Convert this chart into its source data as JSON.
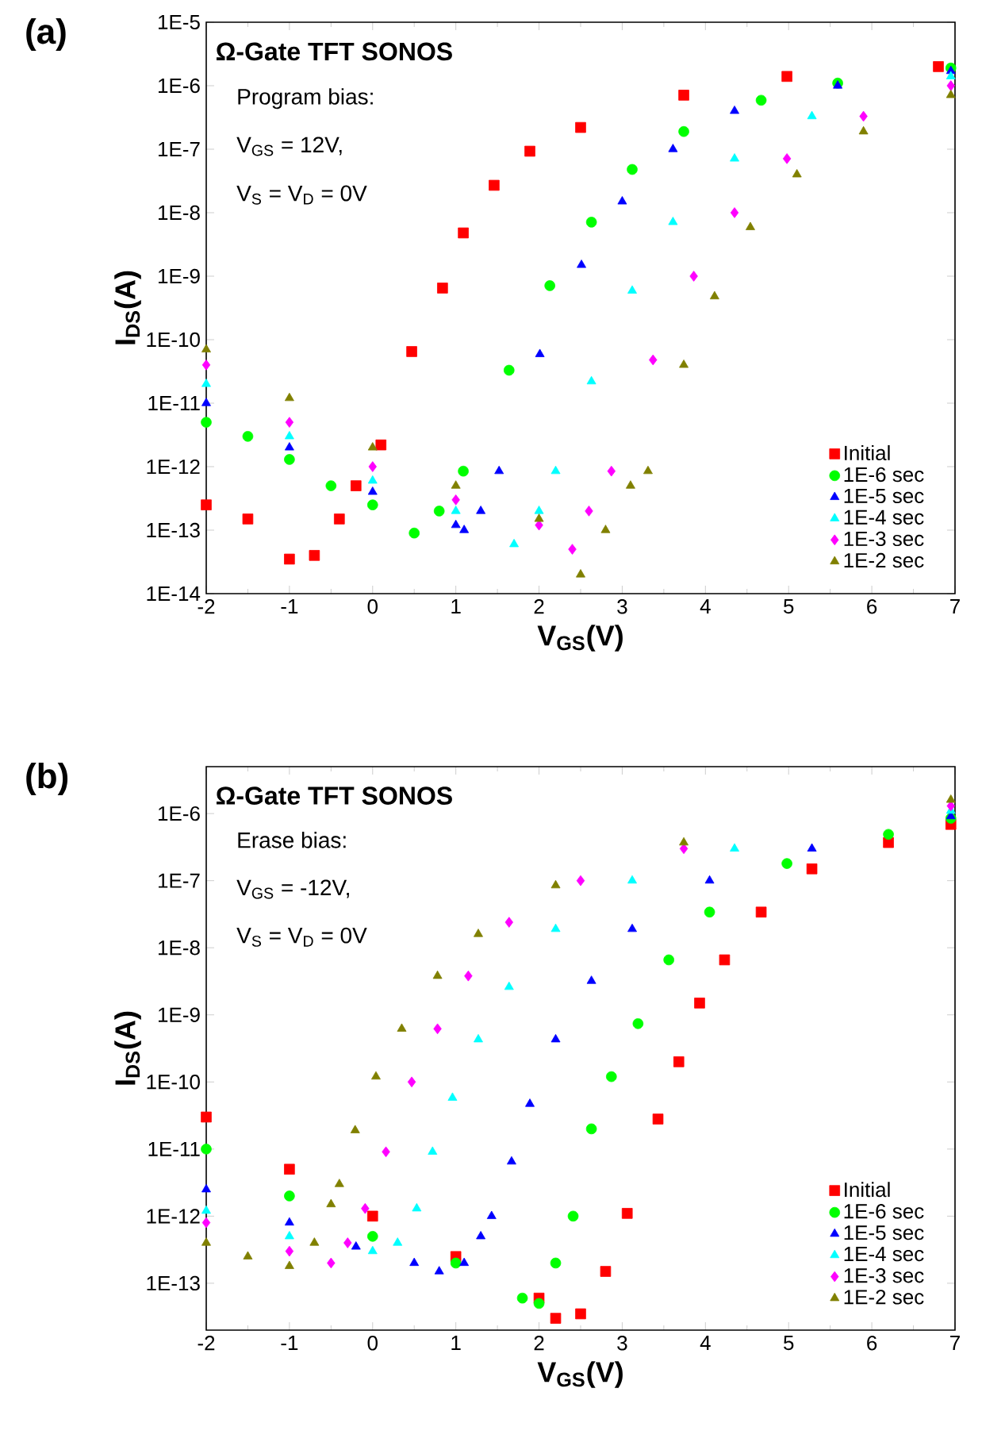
{
  "chart_data": [
    {
      "type": "scatter",
      "title": "(a)",
      "subtitle": "Ω-Gate TFT SONOS",
      "annotations": [
        "Program bias:",
        "V$_{GS}$ = 12V,",
        "V$_{S}$ = V$_{D}$ = 0V"
      ],
      "xlabel": "V$_{GS}$(V)",
      "ylabel": "I$_{DS}$(A)",
      "log": "y",
      "legend": "bottom right",
      "xlim": [
        -2,
        7
      ],
      "ylim": [
        1e-14,
        1e-05
      ],
      "xticks": [
        -2,
        -1,
        0,
        1,
        2,
        3,
        4,
        5,
        6,
        7
      ],
      "yticks": [
        {
          "value": 1e-05,
          "label": "1E-5"
        },
        {
          "value": 1e-06,
          "label": "1E-6"
        },
        {
          "value": 1e-07,
          "label": "1E-7"
        },
        {
          "value": 1e-08,
          "label": "1E-8"
        },
        {
          "value": 1e-09,
          "label": "1E-9"
        },
        {
          "value": 1e-10,
          "label": "1E-10"
        },
        {
          "value": 1e-11,
          "label": "1E-11"
        },
        {
          "value": 1e-12,
          "label": "1E-12"
        },
        {
          "value": 1e-13,
          "label": "1E-13"
        },
        {
          "value": 1e-14,
          "label": "1E-14"
        }
      ],
      "series": [
        {
          "name": "Initial",
          "color": "#ff0000",
          "marker": "square",
          "x": [
            -2,
            -1.5,
            -1,
            -0.7,
            -0.4,
            -0.2,
            0.1,
            0.47,
            0.84,
            1.09,
            1.46,
            1.89,
            2.5,
            3.74,
            4.98,
            6.8
          ],
          "values": [
            2.5e-13,
            1.5e-13,
            3.5e-14,
            4e-14,
            1.5e-13,
            5e-13,
            2.2e-12,
            6.5e-11,
            6.5e-10,
            4.8e-09,
            2.7e-08,
            9.3e-08,
            2.2e-07,
            7.1e-07,
            1.4e-06,
            2e-06
          ]
        },
        {
          "name": "1E-6 sec",
          "color": "#00ff00",
          "marker": "circle",
          "x": [
            -2,
            -1.5,
            -1,
            -0.5,
            0,
            0.5,
            0.8,
            1.09,
            1.64,
            2.13,
            2.63,
            3.12,
            3.74,
            4.67,
            5.59,
            6.95
          ],
          "values": [
            5e-12,
            3e-12,
            1.3e-12,
            5e-13,
            2.5e-13,
            9e-14,
            2e-13,
            8.5e-13,
            3.3e-11,
            7.1e-10,
            7.1e-09,
            4.8e-08,
            1.9e-07,
            5.9e-07,
            1.1e-06,
            1.9e-06
          ]
        },
        {
          "name": "1E-5 sec",
          "color": "#0000ff",
          "marker": "triangle",
          "x": [
            -2,
            -1,
            0,
            1,
            1.1,
            1.3,
            1.52,
            2.01,
            2.51,
            3.0,
            3.61,
            4.35,
            5.59,
            6.95
          ],
          "values": [
            1e-11,
            2e-12,
            4e-13,
            1.2e-13,
            1e-13,
            2e-13,
            8.5e-13,
            5.9e-11,
            1.5e-09,
            1.5e-08,
            1e-07,
            4e-07,
            1e-06,
            1.7e-06
          ]
        },
        {
          "name": "1E-4 sec",
          "color": "#00ffff",
          "marker": "triangle",
          "x": [
            -2,
            -1,
            0,
            1,
            1.7,
            2.0,
            2.2,
            2.63,
            3.12,
            3.61,
            4.35,
            5.28,
            6.95
          ],
          "values": [
            2e-11,
            3e-12,
            6e-13,
            2e-13,
            6e-14,
            2e-13,
            8.5e-13,
            2.2e-11,
            5.9e-10,
            7.1e-09,
            7.1e-08,
            3.3e-07,
            1.4e-06
          ]
        },
        {
          "name": "1E-3 sec",
          "color": "#ff00ff",
          "marker": "diamond",
          "x": [
            -2,
            -1,
            0,
            1,
            2,
            2.4,
            2.6,
            2.87,
            3.37,
            3.86,
            4.35,
            4.98,
            5.9,
            6.95
          ],
          "values": [
            4e-11,
            5e-12,
            1e-12,
            3e-13,
            1.2e-13,
            5e-14,
            2e-13,
            8.5e-13,
            4.8e-11,
            1e-09,
            1e-08,
            7.1e-08,
            3.3e-07,
            1e-06
          ]
        },
        {
          "name": "1E-2 sec",
          "color": "#808000",
          "marker": "triangle",
          "x": [
            -2,
            -1,
            0,
            1,
            2,
            2.5,
            2.8,
            3.1,
            3.31,
            3.74,
            4.11,
            4.54,
            5.1,
            5.9,
            6.95
          ],
          "values": [
            7e-11,
            1.2e-11,
            2e-12,
            5e-13,
            1.5e-13,
            2e-14,
            1e-13,
            5e-13,
            8.5e-13,
            4e-11,
            4.8e-10,
            5.9e-09,
            4e-08,
            1.9e-07,
            7.1e-07
          ]
        }
      ]
    },
    {
      "type": "scatter",
      "title": "(b)",
      "subtitle": "Ω-Gate TFT SONOS",
      "annotations": [
        "Erase bias:",
        "V$_{GS}$ = -12V,",
        "V$_{S}$ = V$_{D}$ = 0V"
      ],
      "xlabel": "V$_{GS}$(V)",
      "ylabel": "I$_{DS}$(A)",
      "log": "y",
      "legend": "bottom right",
      "xlim": [
        -2,
        7
      ],
      "ylim": [
        2e-14,
        5e-06
      ],
      "xticks": [
        -2,
        -1,
        0,
        1,
        2,
        3,
        4,
        5,
        6,
        7
      ],
      "yticks": [
        {
          "value": 1e-06,
          "label": "1E-6"
        },
        {
          "value": 1e-07,
          "label": "1E-7"
        },
        {
          "value": 1e-08,
          "label": "1E-8"
        },
        {
          "value": 1e-09,
          "label": "1E-9"
        },
        {
          "value": 1e-10,
          "label": "1E-10"
        },
        {
          "value": 1e-11,
          "label": "1E-11"
        },
        {
          "value": 1e-12,
          "label": "1E-12"
        },
        {
          "value": 1e-13,
          "label": "1E-13"
        }
      ],
      "series": [
        {
          "name": "Initial",
          "color": "#ff0000",
          "marker": "square",
          "x": [
            -2,
            -1,
            0,
            1,
            2,
            2.2,
            2.5,
            2.8,
            3.06,
            3.43,
            3.68,
            3.93,
            4.23,
            4.67,
            5.28,
            6.2,
            6.95
          ],
          "values": [
            3e-11,
            5e-12,
            1e-12,
            2.5e-13,
            6e-14,
            3e-14,
            3.5e-14,
            1.5e-13,
            1.1e-12,
            2.8e-11,
            2e-10,
            1.5e-09,
            6.6e-09,
            3.4e-08,
            1.5e-07,
            3.7e-07,
            6.9e-07
          ]
        },
        {
          "name": "1E-6 sec",
          "color": "#00ff00",
          "marker": "circle",
          "x": [
            -2,
            -1,
            0,
            1,
            1.8,
            2.0,
            2.2,
            2.41,
            2.63,
            2.87,
            3.19,
            3.56,
            4.05,
            4.98,
            6.2,
            6.95
          ],
          "values": [
            1e-11,
            2e-12,
            5e-13,
            2e-13,
            6e-14,
            5e-14,
            2e-13,
            1e-12,
            2e-11,
            1.2e-10,
            7.4e-10,
            6.6e-09,
            3.4e-08,
            1.8e-07,
            4.9e-07,
            8.5e-07
          ]
        },
        {
          "name": "1E-5 sec",
          "color": "#0000ff",
          "marker": "triangle",
          "x": [
            -2,
            -1,
            -0.2,
            0.5,
            0.8,
            1.1,
            1.3,
            1.43,
            1.67,
            1.89,
            2.2,
            2.63,
            3.12,
            4.05,
            5.28,
            6.95
          ],
          "values": [
            2.5e-12,
            8e-13,
            3.5e-13,
            2e-13,
            1.5e-13,
            2e-13,
            5e-13,
            1e-12,
            6.5e-12,
            4.7e-11,
            4.3e-10,
            3.2e-09,
            1.9e-08,
            1e-07,
            3e-07,
            9.1e-07
          ]
        },
        {
          "name": "1E-4 sec",
          "color": "#00ffff",
          "marker": "triangle",
          "x": [
            -2,
            -1,
            0,
            0.3,
            0.53,
            0.72,
            0.96,
            1.27,
            1.64,
            2.2,
            3.12,
            4.35,
            6.95
          ],
          "values": [
            1.2e-12,
            5e-13,
            3e-13,
            4e-13,
            1.3e-12,
            9.1e-12,
            5.8e-11,
            4.3e-10,
            2.6e-09,
            1.9e-08,
            1e-07,
            3e-07,
            1.1e-06
          ]
        },
        {
          "name": "1E-3 sec",
          "color": "#ff00ff",
          "marker": "diamond",
          "x": [
            -2,
            -1,
            -0.5,
            -0.3,
            -0.09,
            0.16,
            0.47,
            0.78,
            1.15,
            1.64,
            2.5,
            3.74,
            6.95
          ],
          "values": [
            8e-13,
            3e-13,
            2e-13,
            4e-13,
            1.3e-12,
            9.1e-12,
            1e-10,
            6.2e-10,
            3.8e-09,
            2.4e-08,
            1e-07,
            3e-07,
            1.3e-06
          ]
        },
        {
          "name": "1E-2 sec",
          "color": "#808000",
          "marker": "triangle",
          "x": [
            -2,
            -1.5,
            -1,
            -0.7,
            -0.5,
            -0.4,
            -0.21,
            0.04,
            0.35,
            0.78,
            1.27,
            2.2,
            3.74,
            6.95
          ],
          "values": [
            4e-13,
            2.5e-13,
            1.8e-13,
            4e-13,
            1.5e-12,
            3e-12,
            1.9e-11,
            1.2e-10,
            6.2e-10,
            3.8e-09,
            1.6e-08,
            8.5e-08,
            3.7e-07,
            1.6e-06
          ]
        }
      ]
    }
  ]
}
